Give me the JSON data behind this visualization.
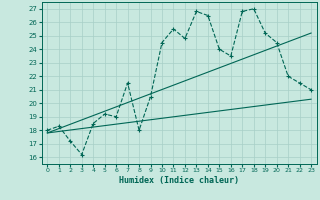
{
  "xlabel": "Humidex (Indice chaleur)",
  "bg_color": "#c8e8df",
  "line_color": "#006655",
  "grid_color": "#a8cfc8",
  "xlim": [
    -0.5,
    23.5
  ],
  "ylim": [
    15.5,
    27.5
  ],
  "xticks": [
    0,
    1,
    2,
    3,
    4,
    5,
    6,
    7,
    8,
    9,
    10,
    11,
    12,
    13,
    14,
    15,
    16,
    17,
    18,
    19,
    20,
    21,
    22,
    23
  ],
  "yticks": [
    16,
    17,
    18,
    19,
    20,
    21,
    22,
    23,
    24,
    25,
    26,
    27
  ],
  "main_x": [
    0,
    1,
    2,
    3,
    4,
    5,
    6,
    7,
    8,
    9,
    10,
    11,
    12,
    13,
    14,
    15,
    16,
    17,
    18,
    19,
    20,
    21,
    22,
    23
  ],
  "main_y": [
    18.0,
    18.3,
    17.2,
    16.2,
    18.5,
    19.2,
    19.0,
    21.5,
    18.0,
    20.5,
    24.5,
    25.5,
    24.8,
    26.8,
    26.5,
    24.0,
    23.5,
    26.8,
    27.0,
    25.2,
    24.5,
    22.0,
    21.5,
    21.0
  ],
  "line2_x": [
    0,
    23
  ],
  "line2_y": [
    17.8,
    25.2
  ],
  "line3_x": [
    0,
    23
  ],
  "line3_y": [
    17.8,
    20.3
  ]
}
